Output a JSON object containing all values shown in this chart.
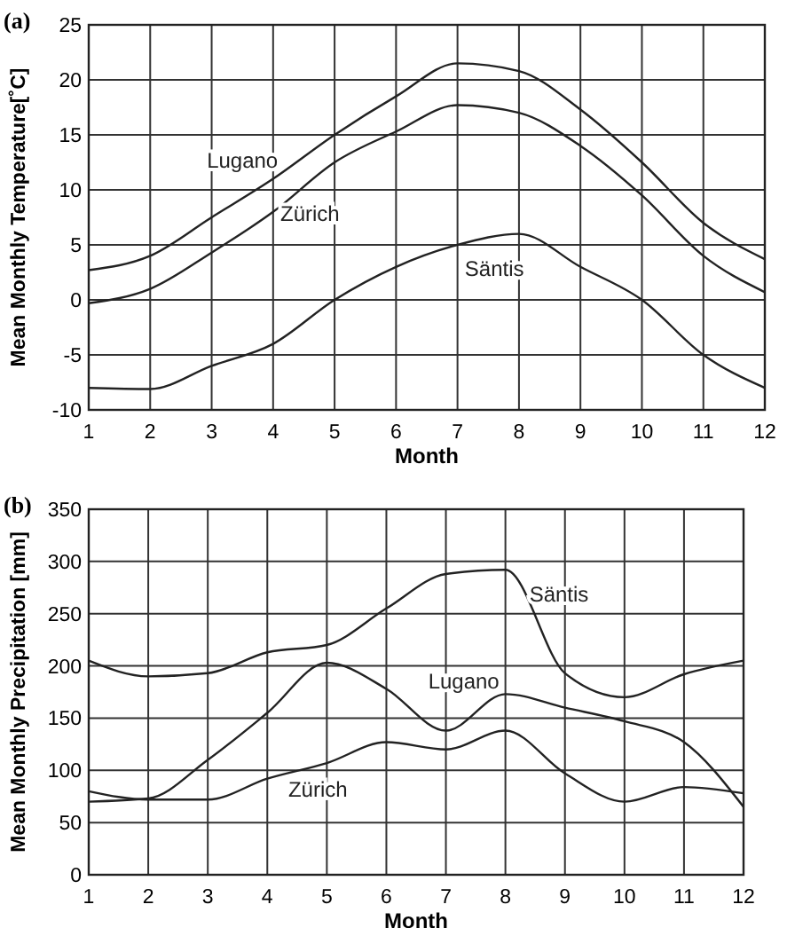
{
  "chart_data": [
    {
      "type": "line",
      "title": "(a)",
      "xlabel": "Month",
      "ylabel": "Mean Monthly Temperature[˚C]",
      "x": [
        1,
        2,
        3,
        4,
        5,
        6,
        7,
        8,
        9,
        10,
        11,
        12
      ],
      "xlim": [
        1,
        12
      ],
      "xticks": [
        1,
        2,
        3,
        4,
        5,
        6,
        7,
        8,
        9,
        10,
        11,
        12
      ],
      "ylim": [
        -10,
        25
      ],
      "yticks": [
        -10,
        -5,
        0,
        5,
        10,
        15,
        20,
        25
      ],
      "grid": true,
      "line_style": "solid",
      "series": [
        {
          "name": "Lugano",
          "color": "#222222",
          "values": [
            2.7,
            4,
            7.5,
            11,
            15,
            18.5,
            21.5,
            20.8,
            17.3,
            12.5,
            7,
            3.7
          ]
        },
        {
          "name": "Zürich",
          "color": "#222222",
          "values": [
            -0.3,
            1,
            4.3,
            8,
            12.5,
            15.3,
            17.7,
            17,
            14,
            9.5,
            4,
            0.7
          ]
        },
        {
          "name": "Säntis",
          "color": "#222222",
          "values": [
            -8,
            -8.1,
            -6,
            -4,
            0,
            3,
            5,
            6,
            3,
            0,
            -5,
            -8
          ]
        }
      ]
    },
    {
      "type": "line",
      "title": "(b)",
      "xlabel": "Month",
      "ylabel": "Mean Monthly Precipitation [mm]",
      "x": [
        1,
        2,
        3,
        4,
        5,
        6,
        7,
        8,
        9,
        10,
        11,
        12
      ],
      "xlim": [
        1,
        12
      ],
      "xticks": [
        1,
        2,
        3,
        4,
        5,
        6,
        7,
        8,
        9,
        10,
        11,
        12
      ],
      "ylim": [
        0,
        350
      ],
      "yticks": [
        0,
        50,
        100,
        150,
        200,
        250,
        300,
        350
      ],
      "grid": true,
      "line_style": "solid",
      "series": [
        {
          "name": "Säntis",
          "color": "#222222",
          "values": [
            205,
            190,
            193,
            213,
            220,
            255,
            288,
            292,
            193,
            170,
            192,
            205
          ]
        },
        {
          "name": "Lugano",
          "color": "#222222",
          "values": [
            70,
            73,
            110,
            155,
            203,
            178,
            138,
            173,
            160,
            147,
            127,
            65
          ]
        },
        {
          "name": "Zürich",
          "color": "#222222",
          "values": [
            80,
            72,
            72,
            92,
            107,
            127,
            120,
            138,
            97,
            70,
            84,
            78
          ]
        }
      ]
    }
  ]
}
